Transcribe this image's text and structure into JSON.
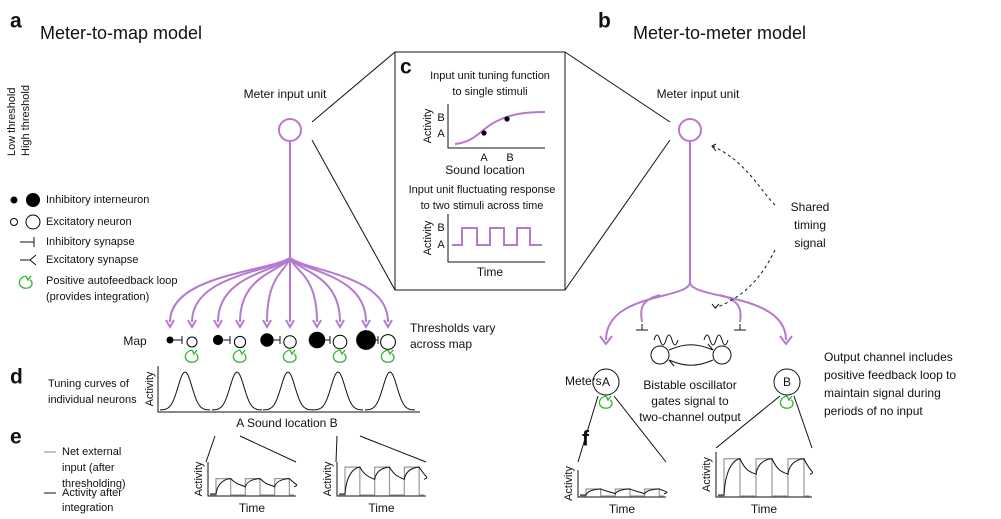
{
  "panel_labels": [
    "a",
    "b",
    "c",
    "d",
    "e",
    "f"
  ],
  "panel_a": {
    "title": "Meter-to-map model",
    "input_unit": "Meter input unit",
    "map_label": "Map",
    "thresholds_note": [
      "Thresholds vary",
      "across map"
    ]
  },
  "legend": {
    "threshold_axis": [
      "Low threshold",
      "High threshold"
    ],
    "items": [
      "Inhibitory interneuron",
      "Excitatory neuron",
      "Inhibitory synapse",
      "Excitatory synapse"
    ],
    "loop": [
      "Positive autofeedback loop",
      "(provides integration)"
    ]
  },
  "panel_b": {
    "title": "Meter-to-meter model",
    "input_unit": "Meter input unit",
    "shared_timing": [
      "Shared",
      "timing",
      "signal"
    ],
    "meters_label": "Meters",
    "meter_names": [
      "A",
      "B"
    ],
    "oscillator_note": [
      "Bistable oscillator",
      "gates signal to",
      "two-channel output"
    ],
    "output_note": [
      "Output channel includes",
      "positive feedback loop to",
      "maintain signal during",
      "periods of no input"
    ]
  },
  "panel_c": {
    "tuning_title": [
      "Input unit tuning function",
      "to single stimuli"
    ],
    "tuning_ylabel": "Activity",
    "tuning_yticks": [
      "B",
      "A"
    ],
    "tuning_xticks": [
      "A",
      "B"
    ],
    "tuning_xlabel": "Sound location",
    "response_title": [
      "Input unit fluctuating response",
      "to two stimuli across time"
    ],
    "response_ylabel": "Activity",
    "response_yticks": [
      "B",
      "A"
    ],
    "response_xlabel": "Time"
  },
  "panel_d": {
    "note": [
      "Tuning curves of",
      "individual neurons"
    ],
    "ylabel": "Activity",
    "xlabel": "A Sound location B"
  },
  "panel_e": {
    "legend": [
      [
        "Net external",
        "input (after",
        "thresholding)"
      ],
      [
        "Activity after",
        "integration"
      ]
    ],
    "plots": [
      {
        "ylabel": "Activity",
        "xlabel": "Time"
      },
      {
        "ylabel": "Activity",
        "xlabel": "Time"
      }
    ]
  },
  "panel_f": {
    "plots": [
      {
        "ylabel": "Activity",
        "xlabel": "Time"
      },
      {
        "ylabel": "Activity",
        "xlabel": "Time"
      }
    ]
  }
}
